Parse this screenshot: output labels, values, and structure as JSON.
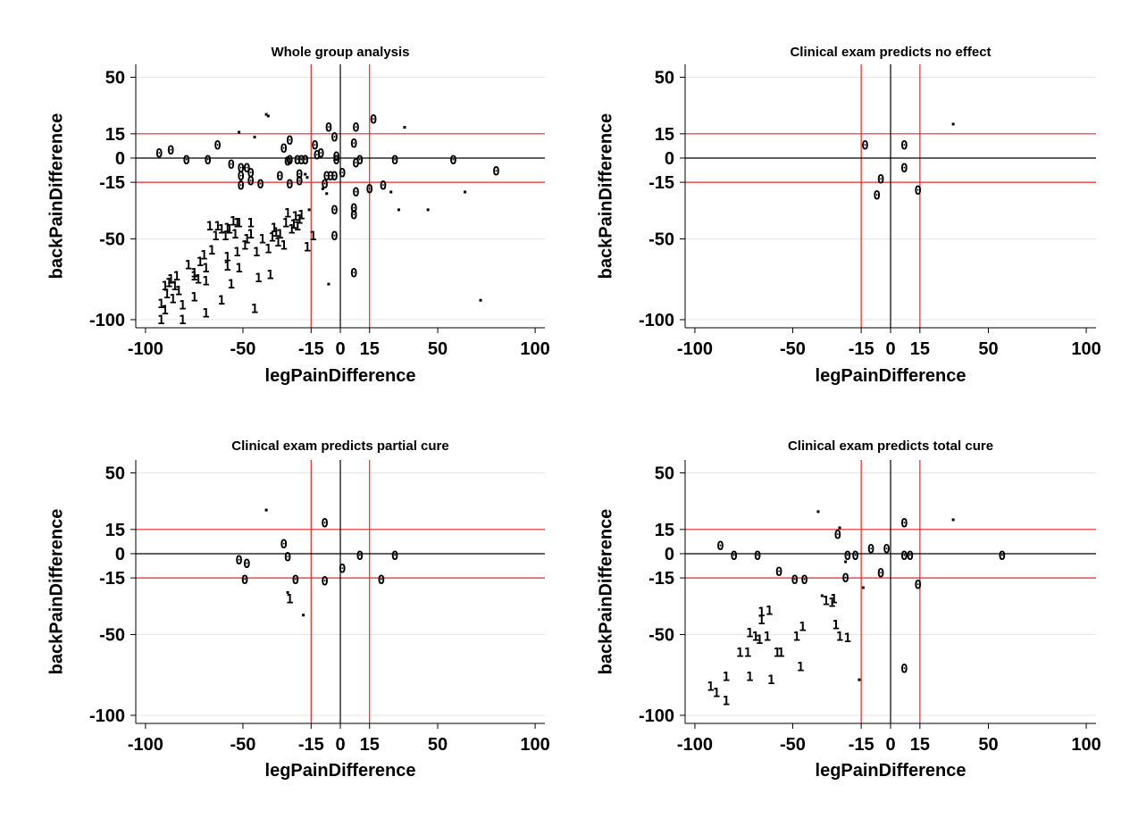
{
  "colors": {
    "reference_lines": "#e8262a",
    "zero_lines": "#000000",
    "grid": "#e6e6e6",
    "markers": "#000000"
  },
  "chart_data": [
    {
      "type": "scatter",
      "title": "Whole group analysis",
      "xlabel": "legPainDifference",
      "ylabel": "backPainDifference",
      "xlim": [
        -105,
        105
      ],
      "ylim": [
        -105,
        58
      ],
      "xticks": [
        -100,
        -50,
        -15,
        0,
        15,
        50,
        100
      ],
      "yticks": [
        50,
        15,
        0,
        -15,
        -50,
        -100
      ],
      "grid_x": [
        -100,
        -50,
        0,
        50,
        100
      ],
      "grid_y": [
        50,
        0,
        -50,
        -100
      ],
      "reference_lines": {
        "x_red": [
          -15,
          15
        ],
        "y_red": [
          15,
          -15
        ],
        "x_black": [
          0
        ],
        "y_black": [
          0
        ]
      },
      "series": [
        {
          "name": "0",
          "points": [
            [
              -93,
              3
            ],
            [
              -87,
              5
            ],
            [
              -79,
              -1
            ],
            [
              -68,
              -1
            ],
            [
              -63,
              8
            ],
            [
              -56,
              -4
            ],
            [
              -51,
              -6
            ],
            [
              -48,
              -6
            ],
            [
              -46,
              -9
            ],
            [
              -51,
              -11
            ],
            [
              -46,
              -14
            ],
            [
              -51,
              -17
            ],
            [
              -41,
              -16
            ],
            [
              -31,
              -11
            ],
            [
              -27,
              -2
            ],
            [
              -29,
              6
            ],
            [
              -26,
              11
            ],
            [
              -26,
              -1
            ],
            [
              -22,
              -1
            ],
            [
              -21,
              -10
            ],
            [
              -21,
              -14
            ],
            [
              -26,
              -16
            ],
            [
              -18,
              -1
            ],
            [
              -18,
              -1
            ],
            [
              -20,
              -1
            ],
            [
              -13,
              8
            ],
            [
              -10,
              3
            ],
            [
              -12,
              2
            ],
            [
              -7,
              -11
            ],
            [
              -8,
              -16
            ],
            [
              -3,
              -11
            ],
            [
              -5,
              -11
            ],
            [
              -2,
              1
            ],
            [
              -2,
              -1
            ],
            [
              -6,
              19
            ],
            [
              -3,
              13
            ],
            [
              1,
              -9
            ],
            [
              7,
              -31
            ],
            [
              7,
              -35
            ],
            [
              8,
              19
            ],
            [
              7,
              9
            ],
            [
              8,
              -3
            ],
            [
              8,
              -21
            ],
            [
              10,
              -1
            ],
            [
              15,
              -19
            ],
            [
              22,
              -17
            ],
            [
              28,
              -1
            ],
            [
              58,
              -1
            ],
            [
              80,
              -8
            ],
            [
              7,
              -71
            ],
            [
              -3,
              -48
            ],
            [
              -3,
              -32
            ],
            [
              17,
              24
            ]
          ]
        },
        {
          "name": "1",
          "points": [
            [
              -92,
              -100
            ],
            [
              -92,
              -90
            ],
            [
              -90,
              -79
            ],
            [
              -89,
              -84
            ],
            [
              -87,
              -75
            ],
            [
              -86,
              -87
            ],
            [
              -85,
              -79
            ],
            [
              -84,
              -73
            ],
            [
              -83,
              -82
            ],
            [
              -81,
              -100
            ],
            [
              -78,
              -66
            ],
            [
              -75,
              -73
            ],
            [
              -75,
              -71
            ],
            [
              -73,
              -75
            ],
            [
              -72,
              -64
            ],
            [
              -70,
              -60
            ],
            [
              -69,
              -76
            ],
            [
              -69,
              -68
            ],
            [
              -66,
              -57
            ],
            [
              -64,
              -48
            ],
            [
              -61,
              -44
            ],
            [
              -59,
              -48
            ],
            [
              -58,
              -61
            ],
            [
              -58,
              -67
            ],
            [
              -57,
              -44
            ],
            [
              -54,
              -47
            ],
            [
              -53,
              -58
            ],
            [
              -53,
              -40
            ],
            [
              -52,
              -68
            ],
            [
              -49,
              -54
            ],
            [
              -48,
              -50
            ],
            [
              -46,
              -40
            ],
            [
              -46,
              -47
            ],
            [
              -43,
              -58
            ],
            [
              -40,
              -50
            ],
            [
              -37,
              -56
            ],
            [
              -35,
              -49
            ],
            [
              -34,
              -43
            ],
            [
              -33,
              -46
            ],
            [
              -32,
              -52
            ],
            [
              -31,
              -47
            ],
            [
              -29,
              -54
            ],
            [
              -28,
              -40
            ],
            [
              -27,
              -34
            ],
            [
              -25,
              -44
            ],
            [
              -24,
              -41
            ],
            [
              -23,
              -36
            ],
            [
              -22,
              -42
            ],
            [
              -21,
              -38
            ],
            [
              -20,
              -35
            ],
            [
              -17,
              -55
            ],
            [
              -14,
              -48
            ],
            [
              -67,
              -42
            ],
            [
              -63,
              -42
            ],
            [
              -58,
              -43
            ],
            [
              -55,
              -39
            ],
            [
              -52,
              -40
            ],
            [
              -56,
              -78
            ],
            [
              -42,
              -74
            ],
            [
              -36,
              -72
            ],
            [
              -44,
              -93
            ],
            [
              -61,
              -88
            ],
            [
              -75,
              -86
            ],
            [
              -81,
              -91
            ],
            [
              -88,
              -77
            ],
            [
              -90,
              -94
            ],
            [
              -69,
              -96
            ]
          ]
        },
        {
          "name": "dot",
          "points": [
            [
              -52,
              16
            ],
            [
              -44,
              13
            ],
            [
              -38,
              27
            ],
            [
              -37,
              26
            ],
            [
              -18,
              -10
            ],
            [
              -17,
              -12
            ],
            [
              -16,
              -32
            ],
            [
              -9,
              -19
            ],
            [
              -7,
              -22
            ],
            [
              -6,
              -78
            ],
            [
              26,
              -21
            ],
            [
              33,
              19
            ],
            [
              30,
              -32
            ],
            [
              45,
              -32
            ],
            [
              64,
              -21
            ],
            [
              72,
              -88
            ]
          ]
        }
      ]
    },
    {
      "type": "scatter",
      "title": "Clinical exam predicts no effect",
      "xlabel": "legPainDifference",
      "ylabel": "backPainDifference",
      "xlim": [
        -105,
        105
      ],
      "ylim": [
        -105,
        58
      ],
      "xticks": [
        -100,
        -50,
        -15,
        0,
        15,
        50,
        100
      ],
      "yticks": [
        50,
        15,
        0,
        -15,
        -50,
        -100
      ],
      "grid_x": [
        -100,
        -50,
        0,
        50,
        100
      ],
      "grid_y": [
        50,
        0,
        -50,
        -100
      ],
      "reference_lines": {
        "x_red": [
          -15,
          15
        ],
        "y_red": [
          15,
          -15
        ],
        "x_black": [
          0
        ],
        "y_black": [
          0
        ]
      },
      "series": [
        {
          "name": "0",
          "points": [
            [
              -13,
              8
            ],
            [
              7,
              8
            ],
            [
              7,
              -6
            ],
            [
              -5,
              -13
            ],
            [
              -7,
              -23
            ],
            [
              14,
              -20
            ]
          ]
        },
        {
          "name": "1",
          "points": []
        },
        {
          "name": "dot",
          "points": [
            [
              32,
              21
            ]
          ]
        }
      ]
    },
    {
      "type": "scatter",
      "title": "Clinical exam predicts partial cure",
      "xlabel": "legPainDifference",
      "ylabel": "backPainDifference",
      "xlim": [
        -105,
        105
      ],
      "ylim": [
        -105,
        58
      ],
      "xticks": [
        -100,
        -50,
        -15,
        0,
        15,
        50,
        100
      ],
      "yticks": [
        50,
        15,
        0,
        -15,
        -50,
        -100
      ],
      "grid_x": [
        -100,
        -50,
        0,
        50,
        100
      ],
      "grid_y": [
        50,
        0,
        -50,
        -100
      ],
      "reference_lines": {
        "x_red": [
          -15,
          15
        ],
        "y_red": [
          15,
          -15
        ],
        "x_black": [
          0
        ],
        "y_black": [
          0
        ]
      },
      "series": [
        {
          "name": "0",
          "points": [
            [
              -52,
              -4
            ],
            [
              -48,
              -6
            ],
            [
              -49,
              -16
            ],
            [
              -29,
              6
            ],
            [
              -27,
              -2
            ],
            [
              -23,
              -16
            ],
            [
              -8,
              19
            ],
            [
              -8,
              -17
            ],
            [
              1,
              -9
            ],
            [
              10,
              -1
            ],
            [
              21,
              -16
            ],
            [
              28,
              -1
            ]
          ]
        },
        {
          "name": "1",
          "points": [
            [
              -26,
              -28
            ]
          ]
        },
        {
          "name": "dot",
          "points": [
            [
              -38,
              27
            ],
            [
              -27,
              -24
            ],
            [
              -19,
              -38
            ]
          ]
        }
      ]
    },
    {
      "type": "scatter",
      "title": "Clinical exam predicts total cure",
      "xlabel": "legPainDifference",
      "ylabel": "backPainDifference",
      "xlim": [
        -105,
        105
      ],
      "ylim": [
        -105,
        58
      ],
      "xticks": [
        -100,
        -50,
        -15,
        0,
        15,
        50,
        100
      ],
      "yticks": [
        50,
        15,
        0,
        -15,
        -50,
        -100
      ],
      "grid_x": [
        -100,
        -50,
        0,
        50,
        100
      ],
      "grid_y": [
        50,
        0,
        -50,
        -100
      ],
      "reference_lines": {
        "x_red": [
          -15,
          15
        ],
        "y_red": [
          15,
          -15
        ],
        "x_black": [
          0
        ],
        "y_black": [
          0
        ]
      },
      "series": [
        {
          "name": "0",
          "points": [
            [
              -87,
              5
            ],
            [
              -80,
              -1
            ],
            [
              -68,
              -1
            ],
            [
              -57,
              -11
            ],
            [
              -49,
              -16
            ],
            [
              -44,
              -16
            ],
            [
              -27,
              12
            ],
            [
              -22,
              -1
            ],
            [
              -18,
              -1
            ],
            [
              -23,
              -15
            ],
            [
              -10,
              3
            ],
            [
              -2,
              3
            ],
            [
              -5,
              -12
            ],
            [
              7,
              19
            ],
            [
              7,
              -1
            ],
            [
              10,
              -1
            ],
            [
              14,
              -19
            ],
            [
              57,
              -1
            ],
            [
              7,
              -71
            ]
          ]
        },
        {
          "name": "1",
          "points": [
            [
              -92,
              -82
            ],
            [
              -89,
              -86
            ],
            [
              -84,
              -76
            ],
            [
              -84,
              -91
            ],
            [
              -77,
              -61
            ],
            [
              -73,
              -61
            ],
            [
              -72,
              -76
            ],
            [
              -72,
              -49
            ],
            [
              -69,
              -51
            ],
            [
              -67,
              -53
            ],
            [
              -66,
              -41
            ],
            [
              -66,
              -36
            ],
            [
              -63,
              -51
            ],
            [
              -62,
              -35
            ],
            [
              -61,
              -78
            ],
            [
              -58,
              -61
            ],
            [
              -56,
              -61
            ],
            [
              -48,
              -51
            ],
            [
              -46,
              -70
            ],
            [
              -45,
              -45
            ],
            [
              -33,
              -29
            ],
            [
              -30,
              -30
            ],
            [
              -29,
              -28
            ],
            [
              -28,
              -44
            ],
            [
              -26,
              -51
            ],
            [
              -22,
              -52
            ]
          ]
        },
        {
          "name": "dot",
          "points": [
            [
              -37,
              26
            ],
            [
              -26,
              16
            ],
            [
              -23,
              -5
            ],
            [
              -35,
              -26
            ],
            [
              -14,
              -21
            ],
            [
              -16,
              -78
            ],
            [
              32,
              21
            ]
          ]
        }
      ]
    }
  ]
}
